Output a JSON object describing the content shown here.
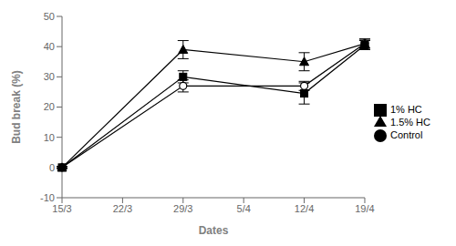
{
  "chart_data": {
    "type": "line",
    "xlabel": "Dates",
    "ylabel": "Bud break (%)",
    "categories": [
      "15/3",
      "22/3",
      "29/3",
      "5/4",
      "12/4",
      "19/4"
    ],
    "series": [
      {
        "name": "Control",
        "color": "#000000",
        "marker": "open_circle",
        "values": [
          0,
          null,
          27,
          null,
          27,
          41
        ],
        "errors": [
          0.3,
          null,
          2.0,
          null,
          1.5,
          1.5
        ]
      },
      {
        "name": "1% HC",
        "color": "#000000",
        "marker": "square",
        "values": [
          0,
          null,
          30,
          null,
          24.5,
          40.5
        ],
        "errors": [
          0.3,
          null,
          2.0,
          null,
          3.5,
          1.5
        ]
      },
      {
        "name": "1.5% HC",
        "color": "#000000",
        "marker": "triangle",
        "values": [
          0,
          null,
          39,
          null,
          35,
          41
        ],
        "errors": [
          0.3,
          null,
          3.0,
          null,
          3.0,
          1.5
        ]
      }
    ],
    "ylim": [
      -10,
      50
    ],
    "yticks": [
      -10,
      0,
      10,
      20,
      30,
      40,
      50
    ],
    "legend": "right",
    "grid": false
  }
}
